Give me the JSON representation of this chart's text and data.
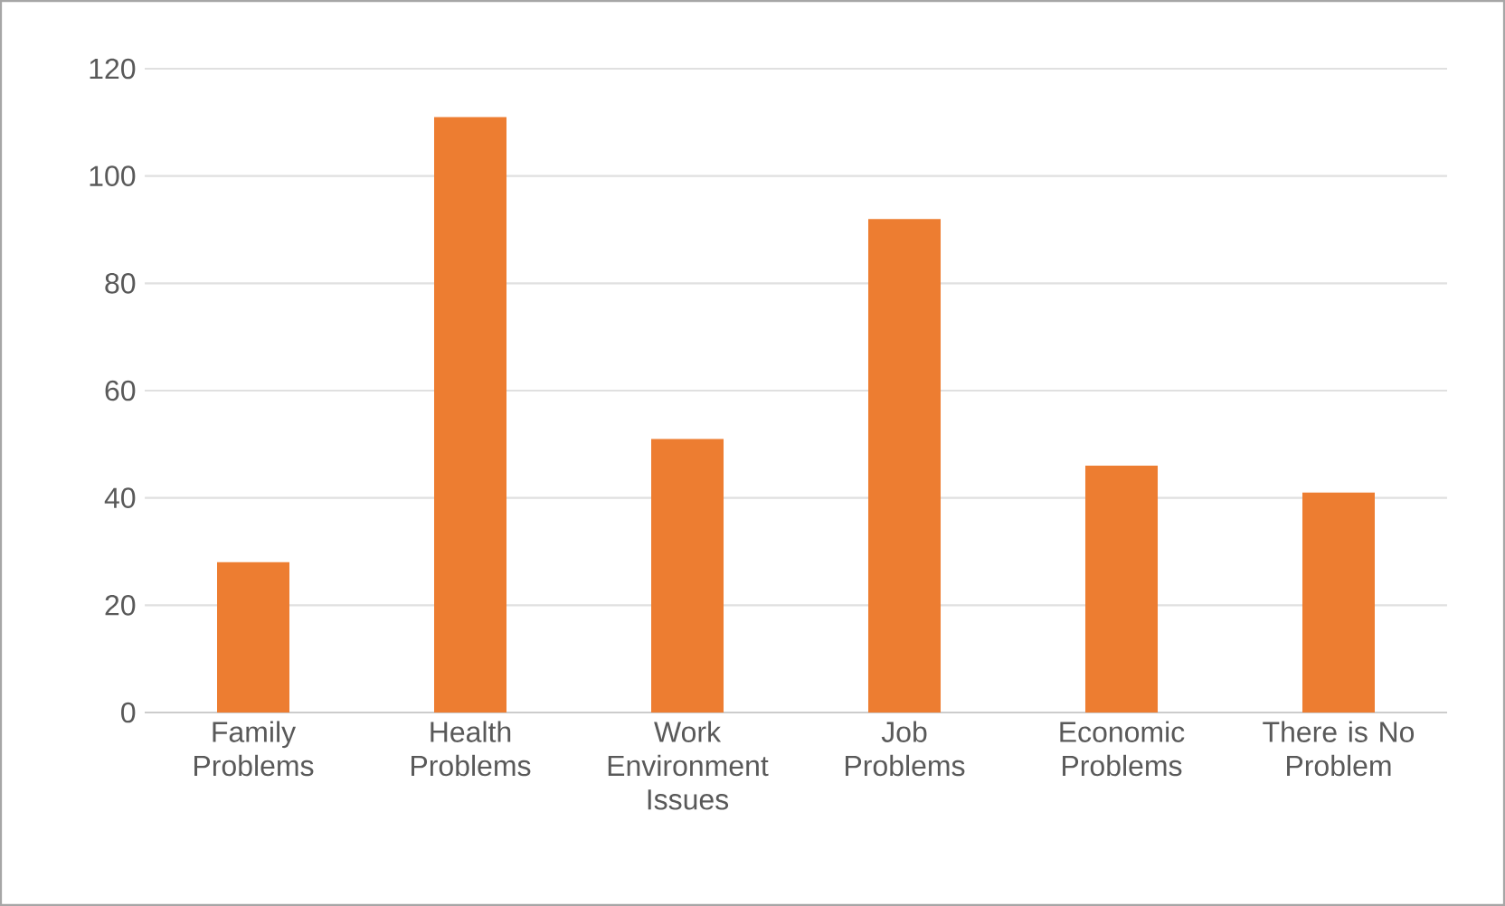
{
  "chart_data": {
    "type": "bar",
    "categories": [
      "Family Problems",
      "Health Problems",
      "Work Environment Issues",
      "Job Problems",
      "Economic Problems",
      "There is No Problem"
    ],
    "values": [
      28,
      111,
      51,
      92,
      46,
      41
    ],
    "color": "#ed7d31",
    "ylim": [
      0,
      120
    ],
    "yticks": [
      0,
      20,
      40,
      60,
      80,
      100,
      120
    ],
    "grid": "y"
  }
}
